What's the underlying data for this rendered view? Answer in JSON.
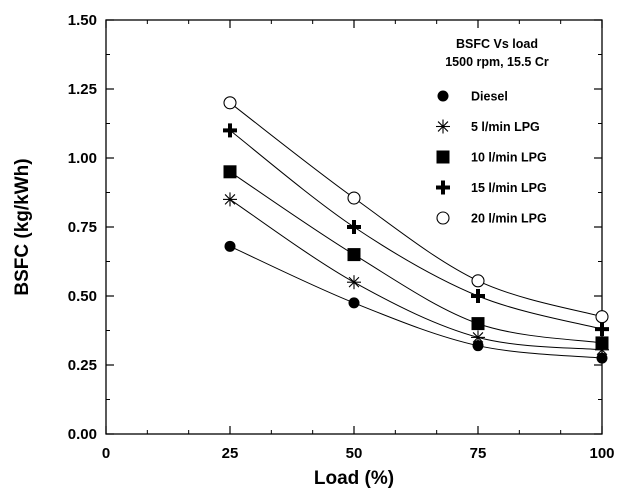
{
  "chart_data": {
    "type": "scatter",
    "title": "BSFC Vs load",
    "subtitle": "1500 rpm, 15.5 Cr",
    "xlabel": "Load (%)",
    "ylabel": "BSFC (kg/kWh)",
    "xlim": [
      0,
      100
    ],
    "ylim": [
      0,
      1.5
    ],
    "x_ticks": [
      "0",
      "25",
      "50",
      "75",
      "100"
    ],
    "y_ticks": [
      "0.00",
      "0.25",
      "0.50",
      "0.75",
      "1.00",
      "1.25",
      "1.50"
    ],
    "grid": false,
    "legend_position": "top-right",
    "trend_lines": "smooth curve through each series",
    "x": [
      25,
      50,
      75,
      100
    ],
    "series": [
      {
        "name": "Diesel",
        "marker": "filled-circle",
        "values": [
          0.68,
          0.475,
          0.32,
          0.275
        ]
      },
      {
        "name": "5 l/min LPG",
        "marker": "asterisk",
        "values": [
          0.85,
          0.55,
          0.35,
          0.305
        ]
      },
      {
        "name": "10 l/min LPG",
        "marker": "filled-square",
        "values": [
          0.95,
          0.65,
          0.4,
          0.33
        ]
      },
      {
        "name": "15 l/min LPG",
        "marker": "plus",
        "values": [
          1.1,
          0.75,
          0.5,
          0.38
        ]
      },
      {
        "name": "20 l/min LPG",
        "marker": "open-circle",
        "values": [
          1.2,
          0.855,
          0.555,
          0.425
        ]
      }
    ]
  }
}
